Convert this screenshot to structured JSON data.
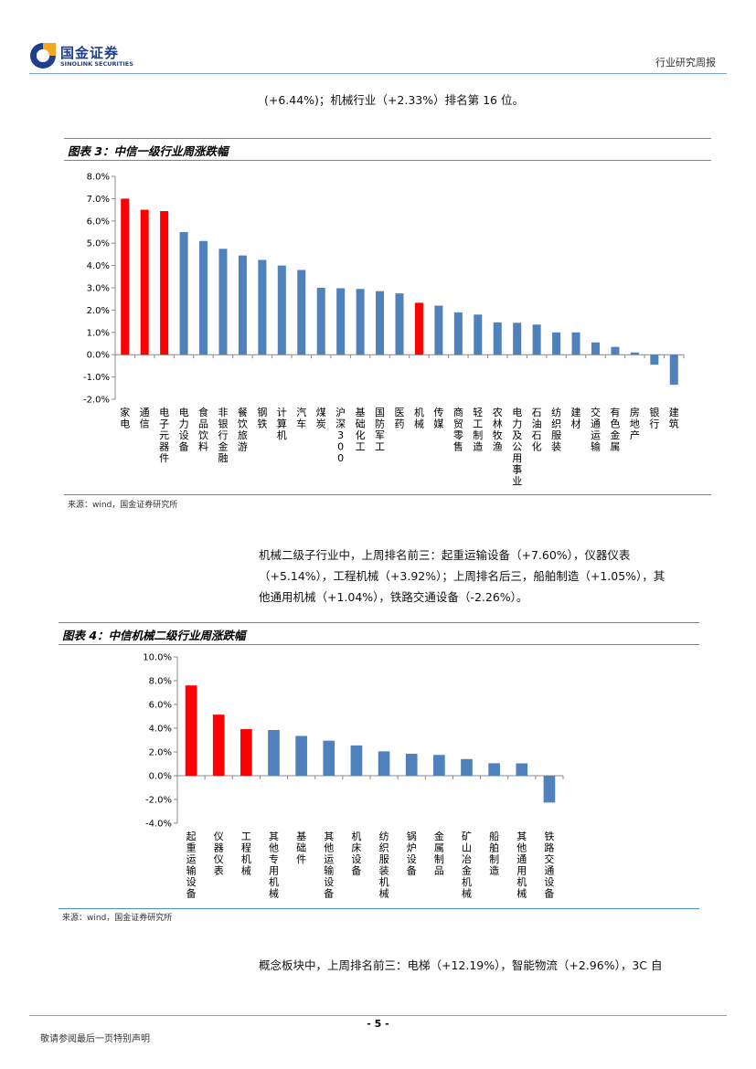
{
  "header": {
    "brand_cn": "国金证券",
    "brand_en": "SINOLINK SECURITIES",
    "report_type": "行业研究周报"
  },
  "intro_line": "(+6.44%)；机械行业（+2.33%）排名第 16 位。",
  "figure3": {
    "title": "图表 3：中信一级行业周涨跌幅",
    "source": "来源：wind，国金证券研究所"
  },
  "paragraph2": [
    "机械二级子行业中，上周排名前三：起重运输设备（+7.60%），仪器仪表",
    "（+5.14%），工程机械（+3.92%）；上周排名后三，船舶制造（+1.05%），其",
    "他通用机械（+1.04%），铁路交通设备（-2.26%）。"
  ],
  "figure4": {
    "title": "图表 4：中信机械二级行业周涨跌幅",
    "source": "来源：wind，国金证券研究所"
  },
  "paragraph3": "概念板块中，上周排名前三：电梯（+12.19%），智能物流（+2.96%），3C 自",
  "footer": {
    "page_number": "- 5 -",
    "note": "敬请参阅最后一页特别声明"
  },
  "colors": {
    "highlight": "#ff0000",
    "bar": "#4f81bd",
    "rule": "#4a90cc"
  },
  "chart_data": [
    {
      "type": "bar",
      "title": "图表 3：中信一级行业周涨跌幅",
      "categories": [
        "家电",
        "通信",
        "电子元器件",
        "电力设备",
        "食品饮料",
        "非银行金融",
        "餐饮旅游",
        "钢铁",
        "计算机",
        "汽车",
        "煤炭",
        "沪深300",
        "基础化工",
        "国防军工",
        "医药",
        "机械",
        "传媒",
        "商贸零售",
        "轻工制造",
        "农林牧渔",
        "电力及公用事业",
        "石油石化",
        "纺织服装",
        "建材",
        "交通运输",
        "有色金属",
        "房地产",
        "银行",
        "建筑"
      ],
      "values": [
        7.0,
        6.5,
        6.44,
        5.5,
        5.1,
        4.75,
        4.45,
        4.25,
        4.0,
        3.8,
        3.0,
        2.98,
        2.95,
        2.85,
        2.75,
        2.33,
        2.2,
        1.9,
        1.8,
        1.45,
        1.43,
        1.35,
        1.0,
        1.0,
        0.55,
        0.35,
        0.1,
        -0.45,
        -1.35
      ],
      "highlight": [
        "家电",
        "通信",
        "电子元器件",
        "机械"
      ],
      "ylim": [
        -2.0,
        8.0
      ],
      "yticks": [
        "8.0%",
        "7.0%",
        "6.0%",
        "5.0%",
        "4.0%",
        "3.0%",
        "2.0%",
        "1.0%",
        "0.0%",
        "-1.0%",
        "-2.0%"
      ],
      "xlabel": "",
      "ylabel": "",
      "grid": false
    },
    {
      "type": "bar",
      "title": "图表 4：中信机械二级行业周涨跌幅",
      "categories": [
        "起重运输设备",
        "仪器仪表",
        "工程机械",
        "其他专用机械",
        "基础件",
        "其他运输设备",
        "机床设备",
        "纺织服装机械",
        "锅炉设备",
        "金属制品",
        "矿山冶金机械",
        "船舶制造",
        "其他通用机械",
        "铁路交通设备"
      ],
      "values": [
        7.6,
        5.14,
        3.92,
        3.85,
        3.35,
        2.95,
        2.55,
        2.05,
        1.85,
        1.75,
        1.4,
        1.05,
        1.04,
        -2.26
      ],
      "highlight": [
        "起重运输设备",
        "仪器仪表",
        "工程机械"
      ],
      "ylim": [
        -4.0,
        10.0
      ],
      "yticks": [
        "10.0%",
        "8.0%",
        "6.0%",
        "4.0%",
        "2.0%",
        "0.0%",
        "-2.0%",
        "-4.0%"
      ],
      "xlabel": "",
      "ylabel": "",
      "grid": false
    }
  ]
}
